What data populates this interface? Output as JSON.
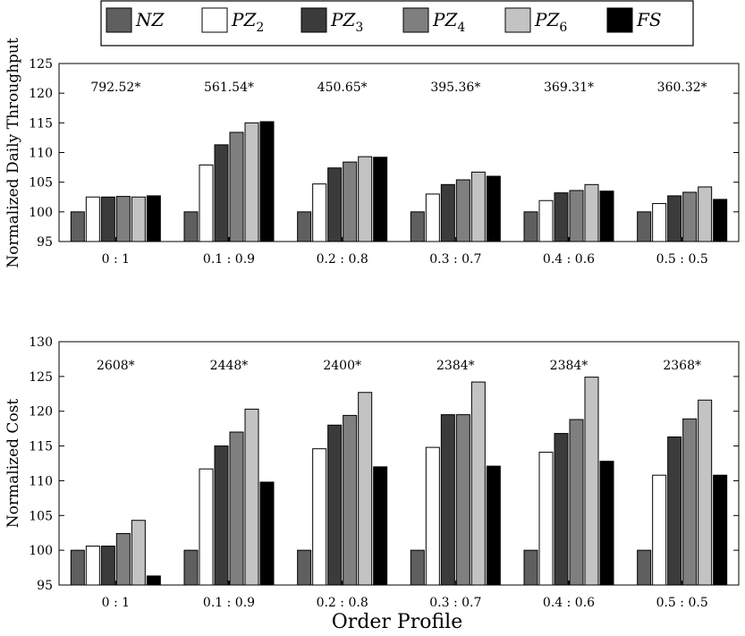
{
  "xlabel": "Order Profile",
  "legend": {
    "entries": [
      {
        "name": "NZ",
        "sub": "",
        "color": "#5f5f5f"
      },
      {
        "name": "PZ",
        "sub": "2",
        "color": "#ffffff"
      },
      {
        "name": "PZ",
        "sub": "3",
        "color": "#3b3b3b"
      },
      {
        "name": "PZ",
        "sub": "4",
        "color": "#7f7f7f"
      },
      {
        "name": "PZ",
        "sub": "6",
        "color": "#c3c3c3"
      },
      {
        "name": "FS",
        "sub": "",
        "color": "#000000"
      }
    ]
  },
  "chart_data": [
    {
      "type": "bar",
      "ylabel": "Normalized Daily Throughput",
      "ylim": [
        95,
        125
      ],
      "yticks": [
        95,
        100,
        105,
        110,
        115,
        120,
        125
      ],
      "categories": [
        "0 : 1",
        "0.1 : 0.9",
        "0.2 : 0.8",
        "0.3 : 0.7",
        "0.4 : 0.6",
        "0.5 : 0.5"
      ],
      "annotations": [
        "792.52*",
        "561.54*",
        "450.65*",
        "395.36*",
        "369.31*",
        "360.32*"
      ],
      "series": [
        {
          "name": "NZ",
          "values": [
            100,
            100,
            100,
            100,
            100,
            100
          ]
        },
        {
          "name": "PZ2",
          "values": [
            102.5,
            107.9,
            104.7,
            103.0,
            101.9,
            101.4
          ]
        },
        {
          "name": "PZ3",
          "values": [
            102.5,
            111.3,
            107.4,
            104.6,
            103.2,
            102.7
          ]
        },
        {
          "name": "PZ4",
          "values": [
            102.6,
            113.4,
            108.4,
            105.4,
            103.6,
            103.3
          ]
        },
        {
          "name": "PZ6",
          "values": [
            102.5,
            115.0,
            109.3,
            106.7,
            104.6,
            104.2
          ]
        },
        {
          "name": "FS",
          "values": [
            102.7,
            115.2,
            109.2,
            106.0,
            103.5,
            102.1
          ]
        }
      ]
    },
    {
      "type": "bar",
      "ylabel": "Normalized Cost",
      "ylim": [
        95,
        130
      ],
      "yticks": [
        95,
        100,
        105,
        110,
        115,
        120,
        125,
        130
      ],
      "categories": [
        "0 : 1",
        "0.1 : 0.9",
        "0.2 : 0.8",
        "0.3 : 0.7",
        "0.4 : 0.6",
        "0.5 : 0.5"
      ],
      "annotations": [
        "2608*",
        "2448*",
        "2400*",
        "2384*",
        "2384*",
        "2368*"
      ],
      "series": [
        {
          "name": "NZ",
          "values": [
            100,
            100,
            100,
            100,
            100,
            100
          ]
        },
        {
          "name": "PZ2",
          "values": [
            100.6,
            111.7,
            114.6,
            114.8,
            114.1,
            110.8
          ]
        },
        {
          "name": "PZ3",
          "values": [
            100.6,
            115.0,
            118.0,
            119.5,
            116.8,
            116.3
          ]
        },
        {
          "name": "PZ4",
          "values": [
            102.4,
            117.0,
            119.4,
            119.5,
            118.8,
            118.9
          ]
        },
        {
          "name": "PZ6",
          "values": [
            104.3,
            120.3,
            122.7,
            124.2,
            124.9,
            121.6
          ]
        },
        {
          "name": "FS",
          "values": [
            96.3,
            109.8,
            112.0,
            112.1,
            112.8,
            110.8
          ]
        }
      ]
    }
  ]
}
